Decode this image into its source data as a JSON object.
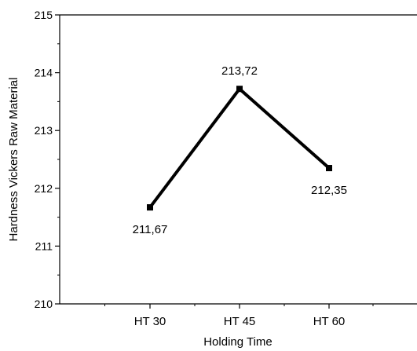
{
  "chart_data": {
    "type": "line",
    "title": "",
    "xlabel": "Holding Time",
    "ylabel": "Hardness Vickers Raw Material",
    "categories": [
      "HT 30",
      "HT 45",
      "HT 60"
    ],
    "series": [
      {
        "values": [
          211.67,
          213.72,
          212.35
        ],
        "data_labels": [
          "211,67",
          "213,72",
          "212,35"
        ],
        "label_placement": [
          "below",
          "above",
          "below"
        ],
        "color": "#000000",
        "marker": "square"
      }
    ],
    "ylim": [
      210,
      215
    ],
    "yticks": [
      210,
      211,
      212,
      213,
      214,
      215
    ],
    "y_minor_step": 0.5,
    "grid": false,
    "legend": "none"
  }
}
